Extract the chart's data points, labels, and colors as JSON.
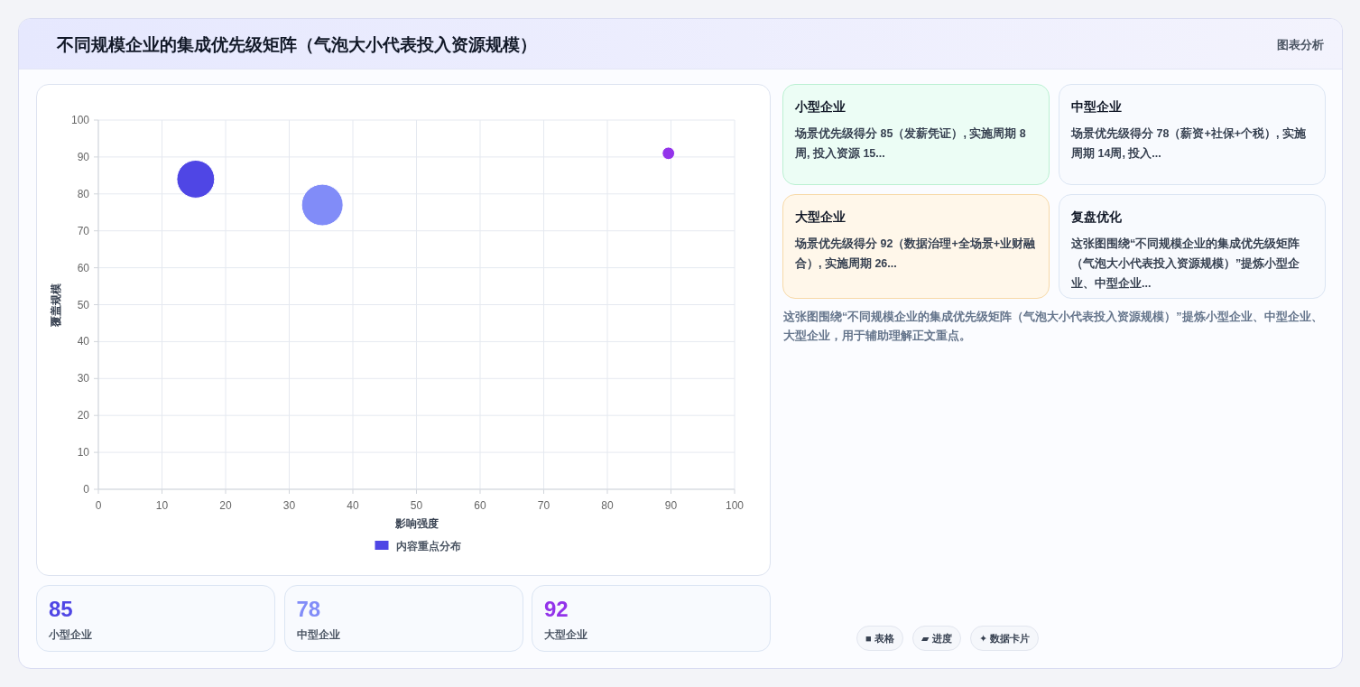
{
  "chart_data": [
    {
      "type": "bubble",
      "title": "不同规模企业的集成优先级矩阵（气泡大小代表投入资源规模）",
      "xlabel": "影响强度",
      "ylabel": "覆盖规模",
      "xlim": [
        0,
        100
      ],
      "xticks": [
        0,
        10,
        20,
        30,
        40,
        50,
        60,
        70,
        80,
        90,
        100
      ],
      "ylim": [
        0,
        100
      ],
      "yticks": [
        0,
        10,
        20,
        30,
        40,
        50,
        60,
        70,
        80,
        90,
        100
      ],
      "grid": true,
      "legend": "bottom",
      "series": [
        {
          "name": "内容重点分布",
          "color": "#4f46e5",
          "colors": [
            "#4f46e5",
            "#818cf8",
            "#9333ea"
          ],
          "x": [
            15.3,
            35.2,
            89.6
          ],
          "values": [
            84,
            77,
            91
          ],
          "sizes": [
            0.83,
            1,
            0.09
          ]
        }
      ]
    },
    {
      "type": "other",
      "annotations": [
        "图表分析",
        "85",
        "小型企业",
        "78",
        "中型企业",
        "92",
        "大型企业",
        "小型企业",
        "场景优先级得分 85（发薪凭证）, 实施周期 8周, 投入资源 15...",
        "中型企业",
        "场景优先级得分 78（薪资+社保+个税）, 实施周期 14周, 投入...",
        "大型企业",
        "场景优先级得分 92（数据治理+全场景+业财融合）, 实施周期 26...",
        "复盘优化",
        "这张图围绕“不同规模企业的集成优先级矩阵（气泡大小代表投入资源规模）”提炼小型企业、中型企业...",
        "这张图围绕“不同规模企业的集成优先级矩阵（气泡大小代表投入资源规模）”提炼小型企业、中型企业、大型企业，用于辅助理解正文重点。",
        "■ 表格",
        "▰ 进度",
        "✦ 数据卡片"
      ]
    }
  ]
}
